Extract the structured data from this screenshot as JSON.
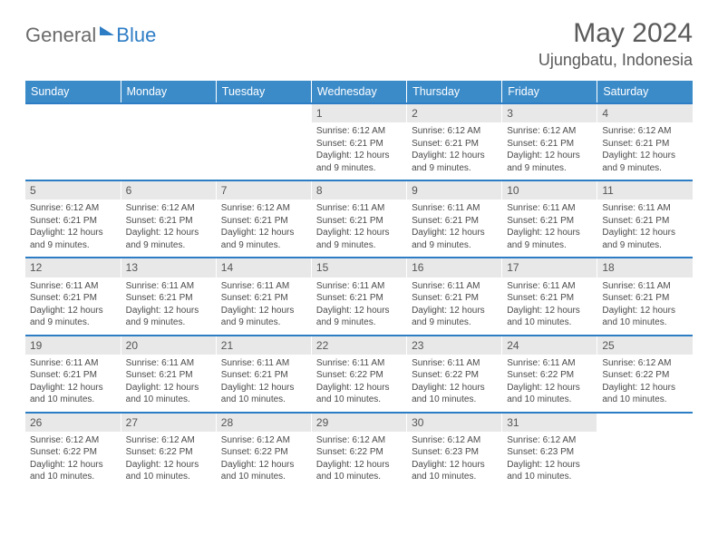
{
  "logo": {
    "word1": "General",
    "word2": "Blue"
  },
  "title": "May 2024",
  "location": "Ujungbatu, Indonesia",
  "colors": {
    "header_bg": "#3b8bc9",
    "header_text": "#ffffff",
    "daynum_bg": "#e8e8e8",
    "week_border": "#2d7dc5",
    "text": "#4a4a4a",
    "logo_gray": "#6b6b6b",
    "logo_blue": "#2d7dc5"
  },
  "weekdays": [
    "Sunday",
    "Monday",
    "Tuesday",
    "Wednesday",
    "Thursday",
    "Friday",
    "Saturday"
  ],
  "weeks": [
    [
      null,
      null,
      null,
      {
        "day": "1",
        "sunrise": "Sunrise: 6:12 AM",
        "sunset": "Sunset: 6:21 PM",
        "daylight1": "Daylight: 12 hours",
        "daylight2": "and 9 minutes."
      },
      {
        "day": "2",
        "sunrise": "Sunrise: 6:12 AM",
        "sunset": "Sunset: 6:21 PM",
        "daylight1": "Daylight: 12 hours",
        "daylight2": "and 9 minutes."
      },
      {
        "day": "3",
        "sunrise": "Sunrise: 6:12 AM",
        "sunset": "Sunset: 6:21 PM",
        "daylight1": "Daylight: 12 hours",
        "daylight2": "and 9 minutes."
      },
      {
        "day": "4",
        "sunrise": "Sunrise: 6:12 AM",
        "sunset": "Sunset: 6:21 PM",
        "daylight1": "Daylight: 12 hours",
        "daylight2": "and 9 minutes."
      }
    ],
    [
      {
        "day": "5",
        "sunrise": "Sunrise: 6:12 AM",
        "sunset": "Sunset: 6:21 PM",
        "daylight1": "Daylight: 12 hours",
        "daylight2": "and 9 minutes."
      },
      {
        "day": "6",
        "sunrise": "Sunrise: 6:12 AM",
        "sunset": "Sunset: 6:21 PM",
        "daylight1": "Daylight: 12 hours",
        "daylight2": "and 9 minutes."
      },
      {
        "day": "7",
        "sunrise": "Sunrise: 6:12 AM",
        "sunset": "Sunset: 6:21 PM",
        "daylight1": "Daylight: 12 hours",
        "daylight2": "and 9 minutes."
      },
      {
        "day": "8",
        "sunrise": "Sunrise: 6:11 AM",
        "sunset": "Sunset: 6:21 PM",
        "daylight1": "Daylight: 12 hours",
        "daylight2": "and 9 minutes."
      },
      {
        "day": "9",
        "sunrise": "Sunrise: 6:11 AM",
        "sunset": "Sunset: 6:21 PM",
        "daylight1": "Daylight: 12 hours",
        "daylight2": "and 9 minutes."
      },
      {
        "day": "10",
        "sunrise": "Sunrise: 6:11 AM",
        "sunset": "Sunset: 6:21 PM",
        "daylight1": "Daylight: 12 hours",
        "daylight2": "and 9 minutes."
      },
      {
        "day": "11",
        "sunrise": "Sunrise: 6:11 AM",
        "sunset": "Sunset: 6:21 PM",
        "daylight1": "Daylight: 12 hours",
        "daylight2": "and 9 minutes."
      }
    ],
    [
      {
        "day": "12",
        "sunrise": "Sunrise: 6:11 AM",
        "sunset": "Sunset: 6:21 PM",
        "daylight1": "Daylight: 12 hours",
        "daylight2": "and 9 minutes."
      },
      {
        "day": "13",
        "sunrise": "Sunrise: 6:11 AM",
        "sunset": "Sunset: 6:21 PM",
        "daylight1": "Daylight: 12 hours",
        "daylight2": "and 9 minutes."
      },
      {
        "day": "14",
        "sunrise": "Sunrise: 6:11 AM",
        "sunset": "Sunset: 6:21 PM",
        "daylight1": "Daylight: 12 hours",
        "daylight2": "and 9 minutes."
      },
      {
        "day": "15",
        "sunrise": "Sunrise: 6:11 AM",
        "sunset": "Sunset: 6:21 PM",
        "daylight1": "Daylight: 12 hours",
        "daylight2": "and 9 minutes."
      },
      {
        "day": "16",
        "sunrise": "Sunrise: 6:11 AM",
        "sunset": "Sunset: 6:21 PM",
        "daylight1": "Daylight: 12 hours",
        "daylight2": "and 9 minutes."
      },
      {
        "day": "17",
        "sunrise": "Sunrise: 6:11 AM",
        "sunset": "Sunset: 6:21 PM",
        "daylight1": "Daylight: 12 hours",
        "daylight2": "and 10 minutes."
      },
      {
        "day": "18",
        "sunrise": "Sunrise: 6:11 AM",
        "sunset": "Sunset: 6:21 PM",
        "daylight1": "Daylight: 12 hours",
        "daylight2": "and 10 minutes."
      }
    ],
    [
      {
        "day": "19",
        "sunrise": "Sunrise: 6:11 AM",
        "sunset": "Sunset: 6:21 PM",
        "daylight1": "Daylight: 12 hours",
        "daylight2": "and 10 minutes."
      },
      {
        "day": "20",
        "sunrise": "Sunrise: 6:11 AM",
        "sunset": "Sunset: 6:21 PM",
        "daylight1": "Daylight: 12 hours",
        "daylight2": "and 10 minutes."
      },
      {
        "day": "21",
        "sunrise": "Sunrise: 6:11 AM",
        "sunset": "Sunset: 6:21 PM",
        "daylight1": "Daylight: 12 hours",
        "daylight2": "and 10 minutes."
      },
      {
        "day": "22",
        "sunrise": "Sunrise: 6:11 AM",
        "sunset": "Sunset: 6:22 PM",
        "daylight1": "Daylight: 12 hours",
        "daylight2": "and 10 minutes."
      },
      {
        "day": "23",
        "sunrise": "Sunrise: 6:11 AM",
        "sunset": "Sunset: 6:22 PM",
        "daylight1": "Daylight: 12 hours",
        "daylight2": "and 10 minutes."
      },
      {
        "day": "24",
        "sunrise": "Sunrise: 6:11 AM",
        "sunset": "Sunset: 6:22 PM",
        "daylight1": "Daylight: 12 hours",
        "daylight2": "and 10 minutes."
      },
      {
        "day": "25",
        "sunrise": "Sunrise: 6:12 AM",
        "sunset": "Sunset: 6:22 PM",
        "daylight1": "Daylight: 12 hours",
        "daylight2": "and 10 minutes."
      }
    ],
    [
      {
        "day": "26",
        "sunrise": "Sunrise: 6:12 AM",
        "sunset": "Sunset: 6:22 PM",
        "daylight1": "Daylight: 12 hours",
        "daylight2": "and 10 minutes."
      },
      {
        "day": "27",
        "sunrise": "Sunrise: 6:12 AM",
        "sunset": "Sunset: 6:22 PM",
        "daylight1": "Daylight: 12 hours",
        "daylight2": "and 10 minutes."
      },
      {
        "day": "28",
        "sunrise": "Sunrise: 6:12 AM",
        "sunset": "Sunset: 6:22 PM",
        "daylight1": "Daylight: 12 hours",
        "daylight2": "and 10 minutes."
      },
      {
        "day": "29",
        "sunrise": "Sunrise: 6:12 AM",
        "sunset": "Sunset: 6:22 PM",
        "daylight1": "Daylight: 12 hours",
        "daylight2": "and 10 minutes."
      },
      {
        "day": "30",
        "sunrise": "Sunrise: 6:12 AM",
        "sunset": "Sunset: 6:23 PM",
        "daylight1": "Daylight: 12 hours",
        "daylight2": "and 10 minutes."
      },
      {
        "day": "31",
        "sunrise": "Sunrise: 6:12 AM",
        "sunset": "Sunset: 6:23 PM",
        "daylight1": "Daylight: 12 hours",
        "daylight2": "and 10 minutes."
      },
      null
    ]
  ]
}
